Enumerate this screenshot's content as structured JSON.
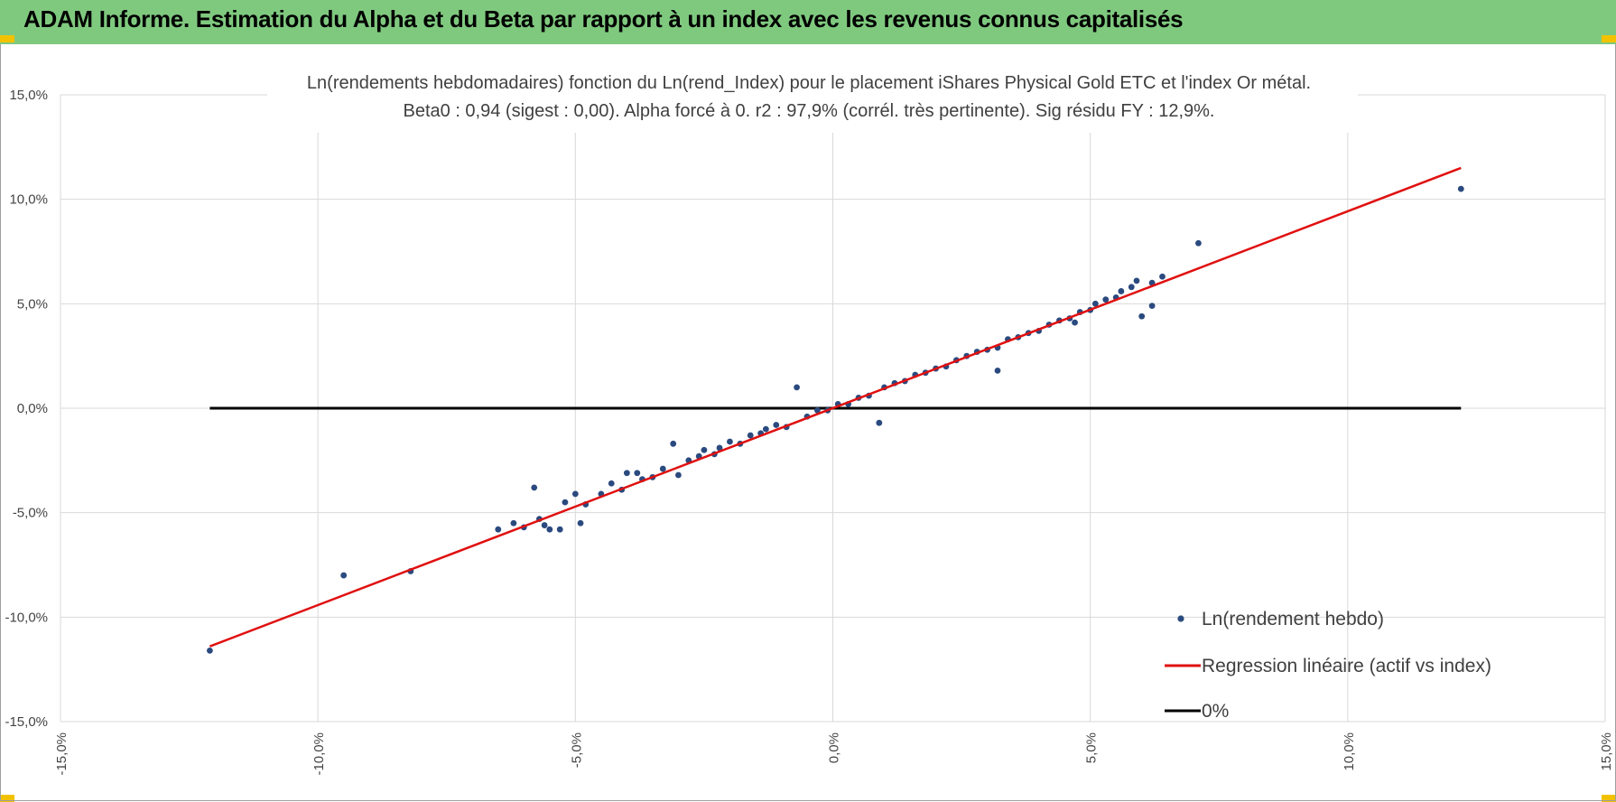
{
  "header": {
    "title": "ADAM Informe. Estimation du Alpha et du Beta par rapport à un index avec les revenus connus capitalisés"
  },
  "colors": {
    "banner": "#7fc97f",
    "points": "#2a4a7f",
    "regression": "#e01010",
    "zero_line": "#000000",
    "grid": "#d9d9d9"
  },
  "chart_data": {
    "type": "scatter",
    "title_line1": "Ln(rendements hebdomadaires) fonction du Ln(rend_Index) pour le placement iShares Physical Gold ETC et l'index Or métal.",
    "title_line2": "Beta0 : 0,94  (sigest : 0,00).  Alpha forcé à 0.  r2 : 97,9% (corrél. très pertinente).  Sig résidu FY : 12,9%.",
    "xlim": [
      -0.15,
      0.15
    ],
    "ylim": [
      -0.15,
      0.15
    ],
    "x_ticks": [
      -0.15,
      -0.1,
      -0.05,
      0.0,
      0.05,
      0.1,
      0.15
    ],
    "y_ticks": [
      -0.15,
      -0.1,
      -0.05,
      0.0,
      0.05,
      0.1,
      0.15
    ],
    "x_tick_labels": [
      "-15,0%",
      "-10,0%",
      "-5,0%",
      "0,0%",
      "5,0%",
      "10,0%",
      "15,0%"
    ],
    "y_tick_labels": [
      "-15,0%",
      "-10,0%",
      "-5,0%",
      "0,0%",
      "5,0%",
      "10,0%",
      "15,0%"
    ],
    "grid": true,
    "legend_position": "bottom-right",
    "series": [
      {
        "name": "Ln(rendement hebdo)",
        "kind": "scatter",
        "points": [
          [
            -0.121,
            -0.116
          ],
          [
            -0.095,
            -0.08
          ],
          [
            -0.082,
            -0.078
          ],
          [
            -0.065,
            -0.058
          ],
          [
            -0.062,
            -0.055
          ],
          [
            -0.06,
            -0.057
          ],
          [
            -0.058,
            -0.038
          ],
          [
            -0.057,
            -0.053
          ],
          [
            -0.056,
            -0.056
          ],
          [
            -0.055,
            -0.058
          ],
          [
            -0.053,
            -0.058
          ],
          [
            -0.052,
            -0.045
          ],
          [
            -0.05,
            -0.041
          ],
          [
            -0.049,
            -0.055
          ],
          [
            -0.048,
            -0.046
          ],
          [
            -0.045,
            -0.041
          ],
          [
            -0.043,
            -0.036
          ],
          [
            -0.041,
            -0.039
          ],
          [
            -0.04,
            -0.031
          ],
          [
            -0.038,
            -0.031
          ],
          [
            -0.037,
            -0.034
          ],
          [
            -0.035,
            -0.033
          ],
          [
            -0.033,
            -0.029
          ],
          [
            -0.031,
            -0.017
          ],
          [
            -0.03,
            -0.032
          ],
          [
            -0.028,
            -0.025
          ],
          [
            -0.026,
            -0.023
          ],
          [
            -0.025,
            -0.02
          ],
          [
            -0.023,
            -0.022
          ],
          [
            -0.022,
            -0.019
          ],
          [
            -0.02,
            -0.016
          ],
          [
            -0.018,
            -0.017
          ],
          [
            -0.016,
            -0.013
          ],
          [
            -0.014,
            -0.012
          ],
          [
            -0.013,
            -0.01
          ],
          [
            -0.011,
            -0.008
          ],
          [
            -0.009,
            -0.009
          ],
          [
            -0.007,
            0.01
          ],
          [
            -0.005,
            -0.004
          ],
          [
            -0.003,
            -0.001
          ],
          [
            -0.001,
            -0.001
          ],
          [
            0.001,
            0.002
          ],
          [
            0.003,
            0.002
          ],
          [
            0.005,
            0.005
          ],
          [
            0.007,
            0.006
          ],
          [
            0.009,
            -0.007
          ],
          [
            0.01,
            0.01
          ],
          [
            0.012,
            0.012
          ],
          [
            0.014,
            0.013
          ],
          [
            0.016,
            0.016
          ],
          [
            0.018,
            0.017
          ],
          [
            0.02,
            0.019
          ],
          [
            0.022,
            0.02
          ],
          [
            0.024,
            0.023
          ],
          [
            0.026,
            0.025
          ],
          [
            0.028,
            0.027
          ],
          [
            0.03,
            0.028
          ],
          [
            0.032,
            0.029
          ],
          [
            0.032,
            0.018
          ],
          [
            0.034,
            0.033
          ],
          [
            0.036,
            0.034
          ],
          [
            0.038,
            0.036
          ],
          [
            0.04,
            0.037
          ],
          [
            0.042,
            0.04
          ],
          [
            0.044,
            0.042
          ],
          [
            0.046,
            0.043
          ],
          [
            0.047,
            0.041
          ],
          [
            0.048,
            0.046
          ],
          [
            0.05,
            0.047
          ],
          [
            0.051,
            0.05
          ],
          [
            0.053,
            0.052
          ],
          [
            0.055,
            0.053
          ],
          [
            0.056,
            0.056
          ],
          [
            0.058,
            0.058
          ],
          [
            0.059,
            0.061
          ],
          [
            0.06,
            0.044
          ],
          [
            0.062,
            0.06
          ],
          [
            0.062,
            0.049
          ],
          [
            0.064,
            0.063
          ],
          [
            0.071,
            0.079
          ],
          [
            0.122,
            0.105
          ]
        ]
      },
      {
        "name": "Regression linéaire (actif vs index)",
        "kind": "line",
        "x": [
          -0.121,
          0.122
        ],
        "y": [
          -0.114,
          0.115
        ]
      },
      {
        "name": "0%",
        "kind": "line",
        "x": [
          -0.121,
          0.122
        ],
        "y": [
          0.0,
          0.0
        ]
      }
    ]
  }
}
